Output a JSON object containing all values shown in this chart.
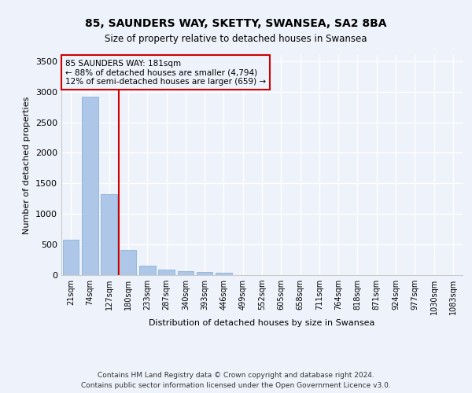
{
  "title_line1": "85, SAUNDERS WAY, SKETTY, SWANSEA, SA2 8BA",
  "title_line2": "Size of property relative to detached houses in Swansea",
  "xlabel": "Distribution of detached houses by size in Swansea",
  "ylabel": "Number of detached properties",
  "categories": [
    "21sqm",
    "74sqm",
    "127sqm",
    "180sqm",
    "233sqm",
    "287sqm",
    "340sqm",
    "393sqm",
    "446sqm",
    "499sqm",
    "552sqm",
    "605sqm",
    "658sqm",
    "711sqm",
    "764sqm",
    "818sqm",
    "871sqm",
    "924sqm",
    "977sqm",
    "1030sqm",
    "1083sqm"
  ],
  "values": [
    575,
    2920,
    1320,
    415,
    160,
    90,
    60,
    55,
    45,
    0,
    0,
    0,
    0,
    0,
    0,
    0,
    0,
    0,
    0,
    0,
    0
  ],
  "bar_color": "#aec6e8",
  "bar_edgecolor": "#7aadd4",
  "highlight_color": "#cc0000",
  "annotation_text": "85 SAUNDERS WAY: 181sqm\n← 88% of detached houses are smaller (4,794)\n12% of semi-detached houses are larger (659) →",
  "annotation_box_edgecolor": "#cc0000",
  "ylim": [
    0,
    3600
  ],
  "yticks": [
    0,
    500,
    1000,
    1500,
    2000,
    2500,
    3000,
    3500
  ],
  "background_color": "#eef2fa",
  "grid_color": "#ffffff",
  "footnote": "Contains HM Land Registry data © Crown copyright and database right 2024.\nContains public sector information licensed under the Open Government Licence v3.0."
}
